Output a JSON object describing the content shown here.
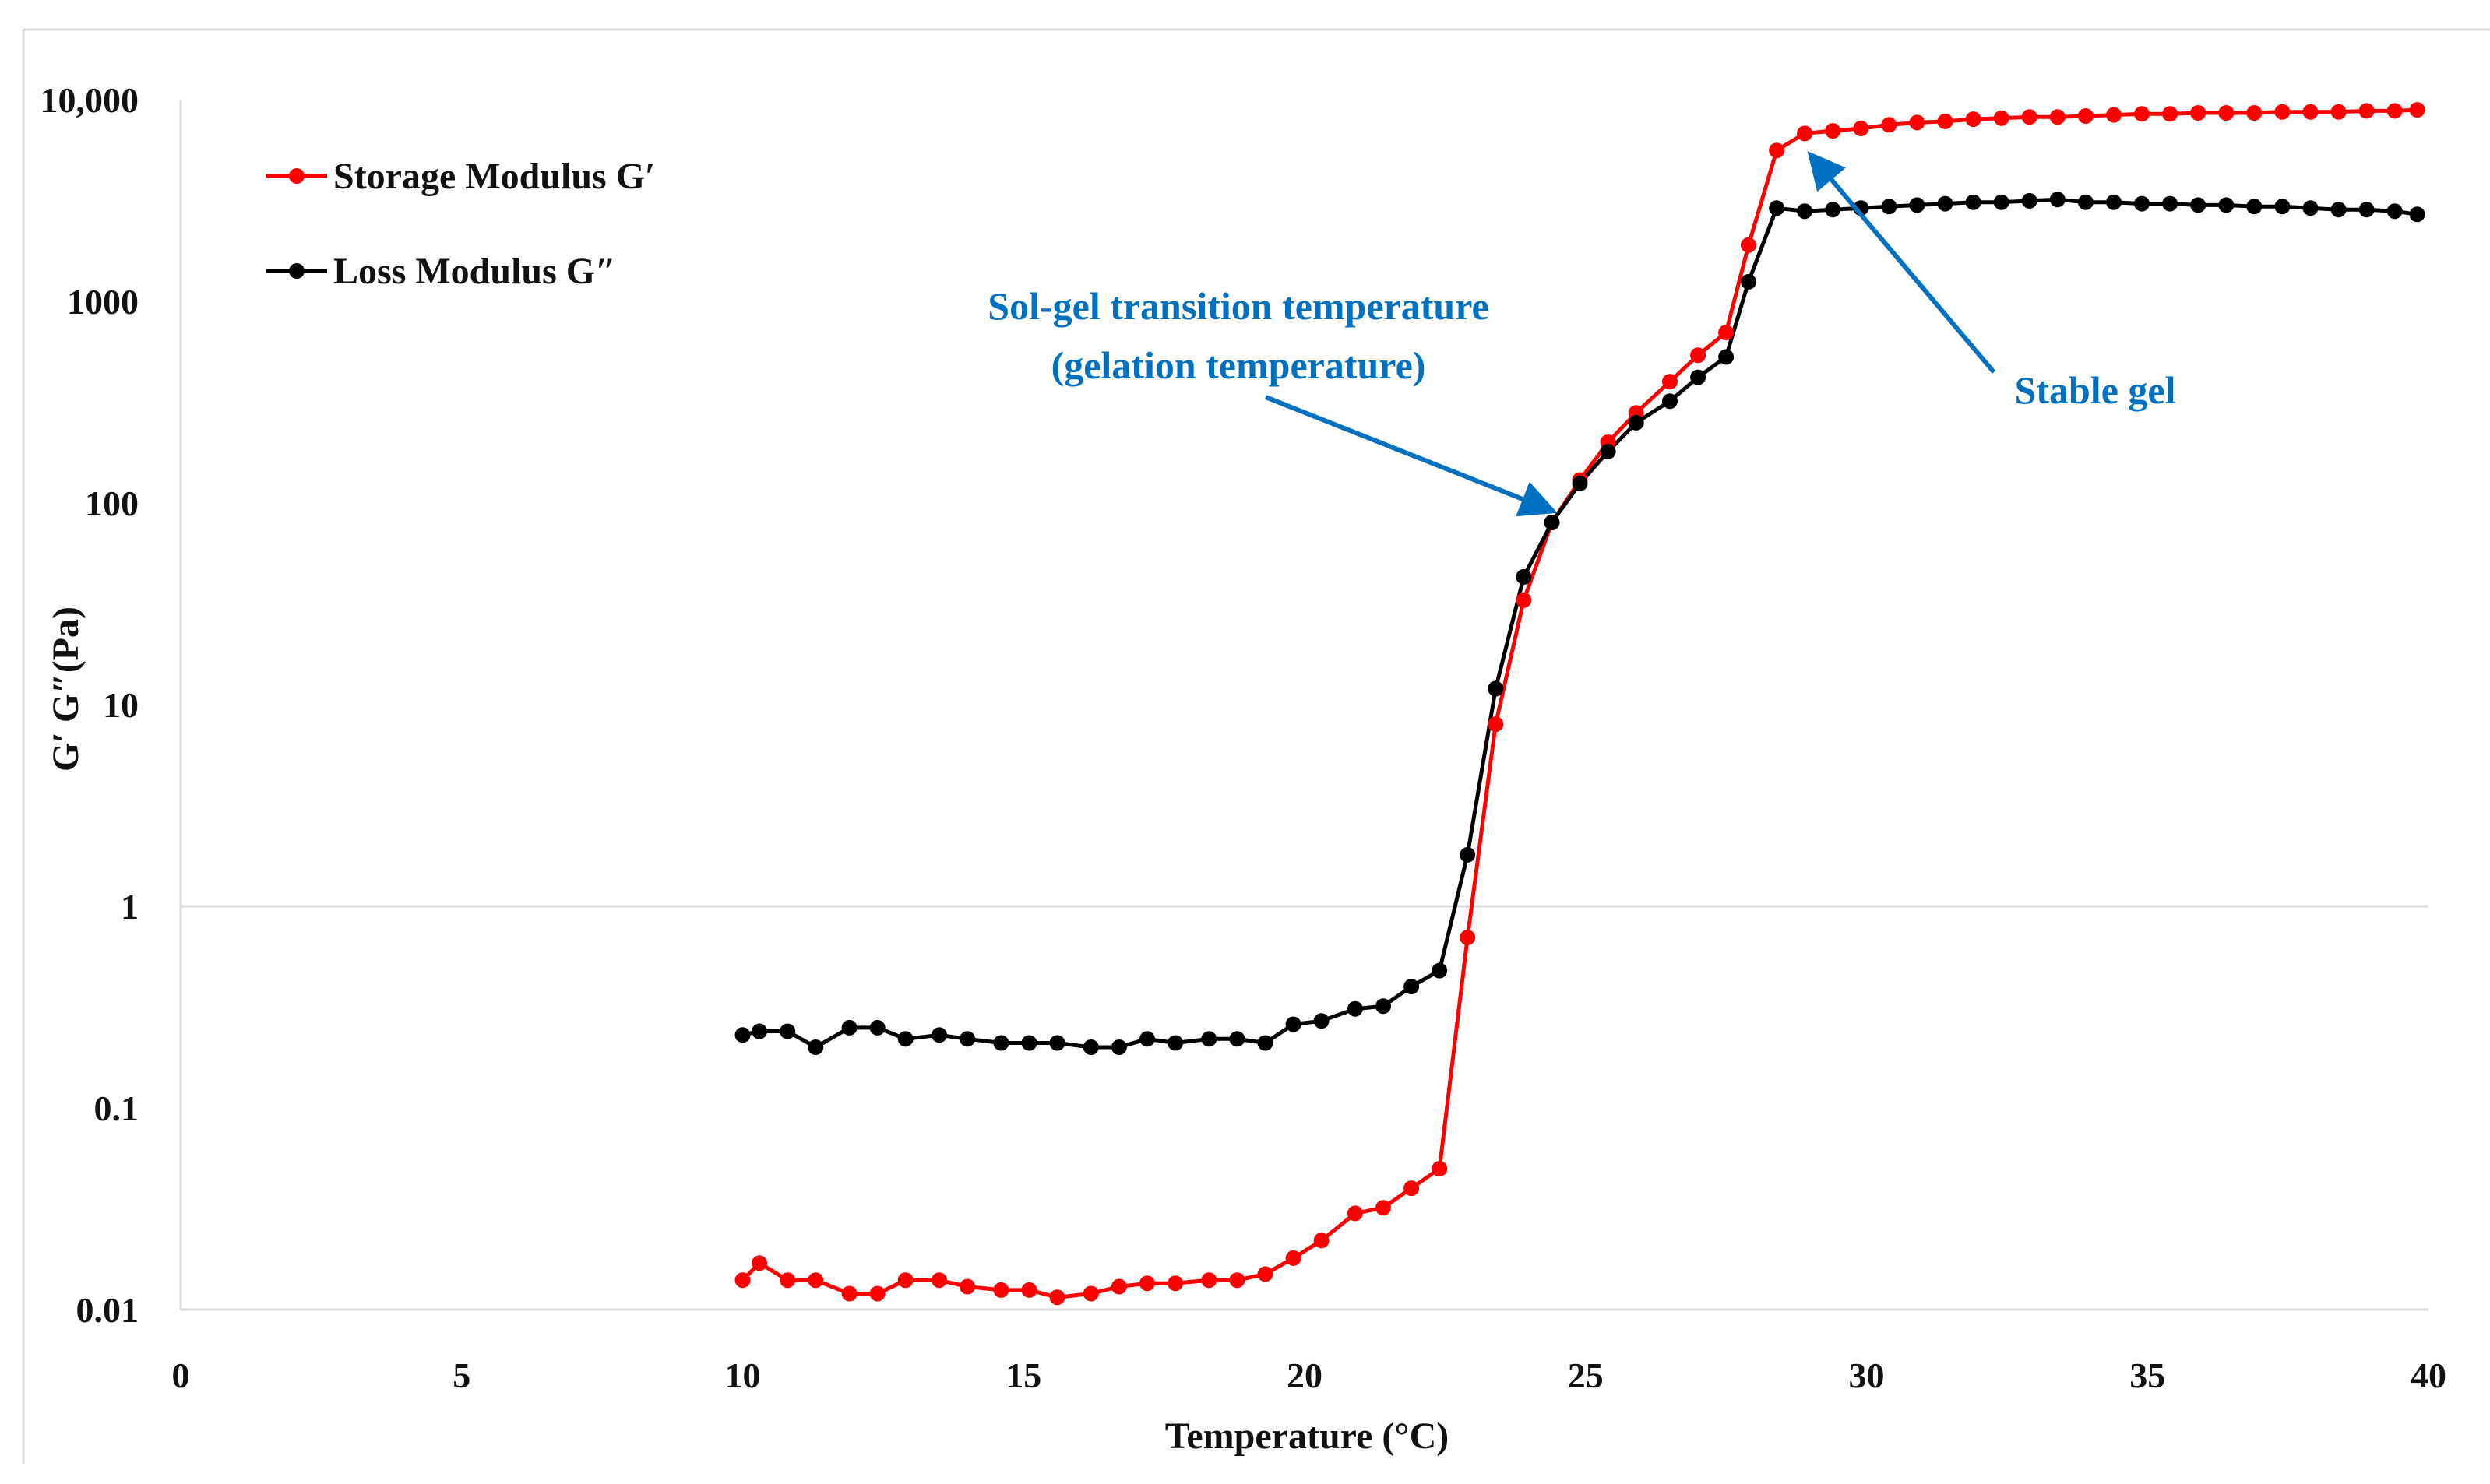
{
  "chart_data": {
    "type": "line",
    "title": "",
    "xlabel": "Temperature (°C)",
    "ylabel": "G′ G″(Pa)",
    "xlim": [
      0,
      40
    ],
    "ylim": [
      0.01,
      10000
    ],
    "yscale": "log",
    "x_ticks": [
      0,
      5,
      10,
      15,
      20,
      25,
      30,
      35,
      40
    ],
    "x_tick_labels": [
      "0",
      "5",
      "10",
      "15",
      "20",
      "25",
      "30",
      "35",
      "40"
    ],
    "y_ticks": [
      0.01,
      0.1,
      1,
      10,
      100,
      1000,
      10000
    ],
    "y_tick_labels": [
      "0.01",
      "0.1",
      "1",
      "10",
      "100",
      "1000",
      "10,000"
    ],
    "grid": "horizontal line at 1",
    "legend_position": "top-left",
    "series": [
      {
        "name": "Storage Modulus G′",
        "color": "#ff0000",
        "x": [
          10.0,
          10.3,
          10.8,
          11.3,
          11.9,
          12.4,
          12.9,
          13.5,
          14.0,
          14.6,
          15.1,
          15.6,
          16.2,
          16.7,
          17.2,
          17.7,
          18.3,
          18.8,
          19.3,
          19.8,
          20.3,
          20.9,
          21.4,
          21.9,
          22.4,
          22.9,
          23.4,
          23.9,
          24.4,
          24.9,
          25.4,
          25.9,
          26.5,
          27.0,
          27.5,
          27.9,
          28.4,
          28.9,
          29.4,
          29.9,
          30.4,
          30.9,
          31.4,
          31.9,
          32.4,
          32.9,
          33.4,
          33.9,
          34.4,
          34.9,
          35.4,
          35.9,
          36.4,
          36.9,
          37.4,
          37.9,
          38.4,
          38.9,
          39.4,
          39.8
        ],
        "y": [
          0.014,
          0.017,
          0.014,
          0.014,
          0.012,
          0.012,
          0.014,
          0.014,
          0.013,
          0.0125,
          0.0125,
          0.0115,
          0.012,
          0.013,
          0.0135,
          0.0135,
          0.014,
          0.014,
          0.015,
          0.018,
          0.022,
          0.03,
          0.032,
          0.04,
          0.05,
          0.7,
          8,
          33,
          80,
          130,
          200,
          280,
          400,
          540,
          700,
          1900,
          5600,
          6800,
          7000,
          7200,
          7500,
          7700,
          7800,
          8000,
          8100,
          8200,
          8200,
          8300,
          8400,
          8500,
          8500,
          8600,
          8600,
          8600,
          8700,
          8700,
          8700,
          8800,
          8800,
          8900
        ]
      },
      {
        "name": "Loss Modulus  G″",
        "color": "#000000",
        "x": [
          10.0,
          10.3,
          10.8,
          11.3,
          11.9,
          12.4,
          12.9,
          13.5,
          14.0,
          14.6,
          15.1,
          15.6,
          16.2,
          16.7,
          17.2,
          17.7,
          18.3,
          18.8,
          19.3,
          19.8,
          20.3,
          20.9,
          21.4,
          21.9,
          22.4,
          22.9,
          23.4,
          23.9,
          24.4,
          24.9,
          25.4,
          25.9,
          26.5,
          27.0,
          27.5,
          27.9,
          28.4,
          28.9,
          29.4,
          29.9,
          30.4,
          30.9,
          31.4,
          31.9,
          32.4,
          32.9,
          33.4,
          33.9,
          34.4,
          34.9,
          35.4,
          35.9,
          36.4,
          36.9,
          37.4,
          37.9,
          38.4,
          38.9,
          39.4,
          39.8
        ],
        "y": [
          0.23,
          0.24,
          0.24,
          0.2,
          0.25,
          0.25,
          0.22,
          0.23,
          0.22,
          0.21,
          0.21,
          0.21,
          0.2,
          0.2,
          0.22,
          0.21,
          0.22,
          0.22,
          0.21,
          0.26,
          0.27,
          0.31,
          0.32,
          0.4,
          0.48,
          1.8,
          12,
          43,
          80,
          125,
          180,
          250,
          320,
          420,
          530,
          1250,
          2900,
          2800,
          2850,
          2900,
          2950,
          3000,
          3050,
          3100,
          3100,
          3150,
          3200,
          3100,
          3100,
          3050,
          3050,
          3000,
          3000,
          2950,
          2950,
          2900,
          2850,
          2850,
          2800,
          2700
        ]
      }
    ],
    "annotations": [
      {
        "text_lines": [
          "Sol-gel transition temperature",
          "(gelation temperature)"
        ],
        "arrow_to": {
          "x": 24.4,
          "y": 85
        }
      },
      {
        "text_lines": [
          "Stable gel"
        ],
        "arrow_to": {
          "x": 29.0,
          "y": 5800
        }
      }
    ],
    "annotation_color": "#0070c0"
  }
}
